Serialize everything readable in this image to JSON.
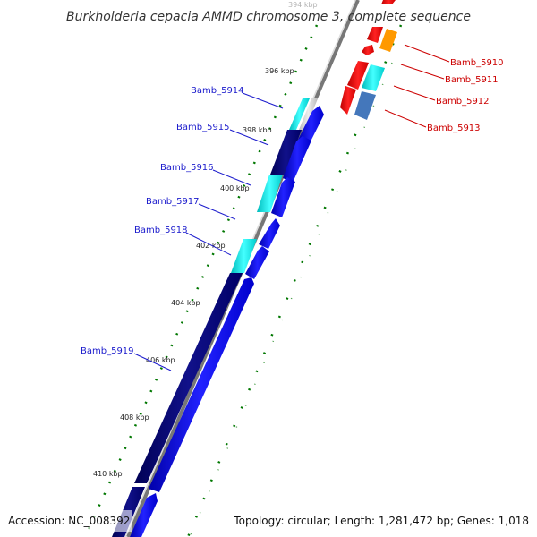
{
  "title": "Burkholderia cepacia AMMD chromosome 3, complete sequence",
  "footer": {
    "accession": "Accession: NC_008392",
    "topology": "Topology: circular; Length: 1,281,472 bp; Genes: 1,018"
  },
  "ticks": [
    "394 kbp",
    "396 kbp",
    "398 kbp",
    "400 kbp",
    "402 kbp",
    "404 kbp",
    "406 kbp",
    "408 kbp",
    "410 kbp"
  ],
  "genes_reverse": [
    "Bamb_5914",
    "Bamb_5915",
    "Bamb_5916",
    "Bamb_5917",
    "Bamb_5918",
    "Bamb_5919"
  ],
  "genes_forward": [
    "Bamb_5910",
    "Bamb_5911",
    "Bamb_5912",
    "Bamb_5913"
  ],
  "colors": {
    "reverse_cds": "#0000ee",
    "reverse_block": "#000077",
    "reverse_accent": "#00dddd",
    "forward_cds": "#ee0000",
    "forward_accent": "#00cccc",
    "forward_orange": "#ff9900",
    "forward_steel": "#4477bb",
    "backbone": "#888888",
    "tick_marks": "#007700"
  }
}
